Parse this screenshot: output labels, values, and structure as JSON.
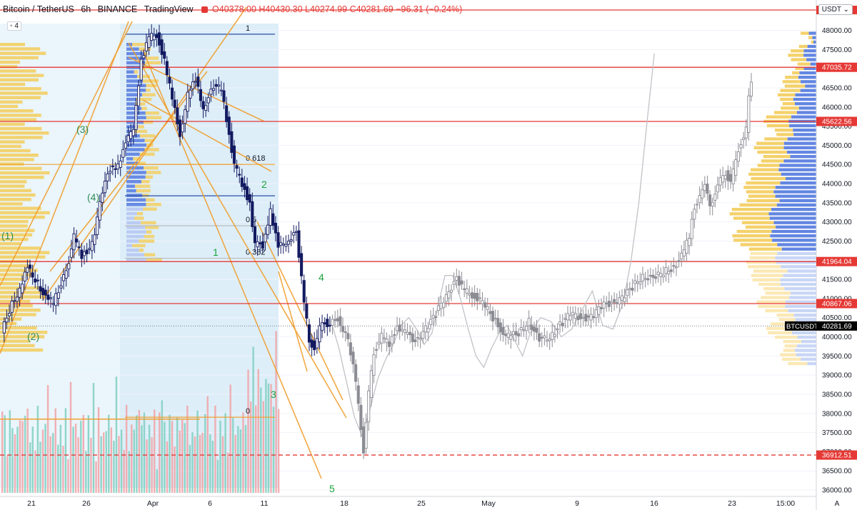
{
  "header": {
    "symbol": "Bitcoin / TetherUS",
    "interval": "6h",
    "exchange": "BINANCE",
    "source": "TradingView",
    "ohlc": "O40378.00 H40430.30 L40274.99 C40281.69 −96.31 (−0.24%)",
    "currency_button": "USDT",
    "layers_badge": "4"
  },
  "colors": {
    "candle": "#131a60",
    "projection": "#8c8c94",
    "ghost_line": "#c2c2c8",
    "fan_line": "#f0a030",
    "hline_red": "#e53935",
    "hline_blue": "#2a4fa8",
    "vp_yellow": "#f3cf63",
    "vp_blue": "#5b7fe0",
    "vol_green": "#7fcfc0",
    "vol_red": "#f1a2a6",
    "wave_green": "#2e8b57",
    "shade": "#e3f1fb"
  },
  "chart_data": {
    "type": "candlestick",
    "y_axis": {
      "min": 36000,
      "max": 48000,
      "ticks": [
        "48000.00",
        "47500.00",
        "47000.00",
        "46500.00",
        "46000.00",
        "45500.00",
        "45000.00",
        "44500.00",
        "44000.00",
        "43500.00",
        "43000.00",
        "42500.00",
        "42000.00",
        "41500.00",
        "41000.00",
        "40500.00",
        "40000.00",
        "39500.00",
        "39000.00",
        "38500.00",
        "38000.00",
        "37500.00",
        "37000.00",
        "36500.00",
        "36000.00"
      ]
    },
    "x_axis": {
      "labels": [
        "21",
        "26",
        "Apr",
        "6",
        "11",
        "18",
        "25",
        "May",
        "9",
        "16",
        "23",
        "15:00"
      ],
      "footer_mark": "A"
    },
    "price_labels": [
      {
        "value": "47035.72",
        "type": "level"
      },
      {
        "value": "45622.56",
        "type": "level"
      },
      {
        "value": "41964.04",
        "type": "level"
      },
      {
        "value": "40867.06",
        "type": "level"
      },
      {
        "value": "36912.51",
        "type": "level_dashed"
      },
      {
        "value": "40281.69",
        "type": "last",
        "symbol": "BTCUSDT"
      }
    ],
    "fib_labels": [
      "1",
      "0.618",
      "0.5",
      "0.382",
      "0"
    ],
    "wave_labels": [
      "(1)",
      "(2)",
      "(3)",
      "(4)",
      "1",
      "2",
      "3",
      "4",
      "5"
    ],
    "actual_path": [
      [
        0,
        40100
      ],
      [
        4,
        40900
      ],
      [
        7,
        41200
      ],
      [
        10,
        41800
      ],
      [
        14,
        41400
      ],
      [
        17,
        41000
      ],
      [
        20,
        40900
      ],
      [
        25,
        41700
      ],
      [
        28,
        42600
      ],
      [
        31,
        42100
      ],
      [
        35,
        42400
      ],
      [
        39,
        43800
      ],
      [
        42,
        44400
      ],
      [
        45,
        44500
      ],
      [
        48,
        45000
      ],
      [
        51,
        45500
      ],
      [
        54,
        47200
      ],
      [
        57,
        47800
      ],
      [
        60,
        47900
      ],
      [
        63,
        47200
      ],
      [
        66,
        46200
      ],
      [
        69,
        45300
      ],
      [
        72,
        46300
      ],
      [
        75,
        46700
      ],
      [
        78,
        46000
      ],
      [
        82,
        46500
      ],
      [
        85,
        46500
      ],
      [
        88,
        45300
      ],
      [
        90,
        44500
      ],
      [
        93,
        44000
      ],
      [
        96,
        43500
      ],
      [
        98,
        42400
      ],
      [
        101,
        42400
      ],
      [
        104,
        43300
      ],
      [
        107,
        42300
      ],
      [
        110,
        42500
      ],
      [
        114,
        42700
      ],
      [
        117,
        40900
      ],
      [
        119,
        39900
      ],
      [
        121,
        39700
      ],
      [
        123,
        40200
      ],
      [
        125,
        40400
      ],
      [
        127,
        40300
      ]
    ],
    "projection_path": [
      [
        127,
        40300
      ],
      [
        130,
        40500
      ],
      [
        134,
        39900
      ],
      [
        136,
        39200
      ],
      [
        138,
        38300
      ],
      [
        140,
        37000
      ],
      [
        142,
        38500
      ],
      [
        144,
        39600
      ],
      [
        147,
        40000
      ],
      [
        150,
        39800
      ],
      [
        153,
        40300
      ],
      [
        156,
        40100
      ],
      [
        160,
        39900
      ],
      [
        164,
        40200
      ],
      [
        168,
        40600
      ],
      [
        172,
        41100
      ],
      [
        176,
        41500
      ],
      [
        179,
        41200
      ],
      [
        182,
        41100
      ],
      [
        186,
        40900
      ],
      [
        190,
        40500
      ],
      [
        193,
        40200
      ],
      [
        196,
        40000
      ],
      [
        200,
        40100
      ],
      [
        204,
        40400
      ],
      [
        208,
        39900
      ],
      [
        212,
        40000
      ],
      [
        216,
        40300
      ],
      [
        220,
        40600
      ],
      [
        224,
        40500
      ],
      [
        228,
        40500
      ],
      [
        232,
        40800
      ],
      [
        236,
        40900
      ],
      [
        240,
        41000
      ],
      [
        244,
        41300
      ],
      [
        248,
        41600
      ],
      [
        252,
        41500
      ],
      [
        256,
        41700
      ],
      [
        260,
        41800
      ],
      [
        263,
        42100
      ],
      [
        266,
        42600
      ],
      [
        268,
        43400
      ],
      [
        270,
        43700
      ],
      [
        272,
        43900
      ],
      [
        274,
        43500
      ],
      [
        276,
        43700
      ],
      [
        278,
        44100
      ],
      [
        280,
        44300
      ],
      [
        282,
        44000
      ],
      [
        284,
        44600
      ],
      [
        286,
        45100
      ],
      [
        288,
        45400
      ],
      [
        289,
        46200
      ],
      [
        290,
        46700
      ]
    ],
    "ghost_path": [
      [
        127,
        40400
      ],
      [
        130,
        39700
      ],
      [
        133,
        38800
      ],
      [
        136,
        37900
      ],
      [
        139,
        37400
      ],
      [
        142,
        38100
      ],
      [
        145,
        38900
      ],
      [
        148,
        39400
      ],
      [
        151,
        39800
      ],
      [
        154,
        40300
      ],
      [
        157,
        40500
      ],
      [
        160,
        40200
      ],
      [
        163,
        39800
      ],
      [
        166,
        40100
      ],
      [
        168,
        40700
      ],
      [
        171,
        41600
      ],
      [
        174,
        41600
      ],
      [
        177,
        41000
      ],
      [
        180,
        40200
      ],
      [
        183,
        39500
      ],
      [
        186,
        39200
      ],
      [
        189,
        39700
      ],
      [
        192,
        40100
      ],
      [
        195,
        40300
      ],
      [
        198,
        39900
      ],
      [
        201,
        39500
      ],
      [
        204,
        40100
      ],
      [
        208,
        40500
      ],
      [
        212,
        40400
      ],
      [
        216,
        40000
      ],
      [
        220,
        40200
      ],
      [
        224,
        40700
      ],
      [
        228,
        41200
      ],
      [
        232,
        40300
      ],
      [
        236,
        40200
      ],
      [
        240,
        40900
      ],
      [
        243,
        42000
      ],
      [
        246,
        43500
      ],
      [
        249,
        45500
      ],
      [
        252,
        47400
      ]
    ]
  }
}
